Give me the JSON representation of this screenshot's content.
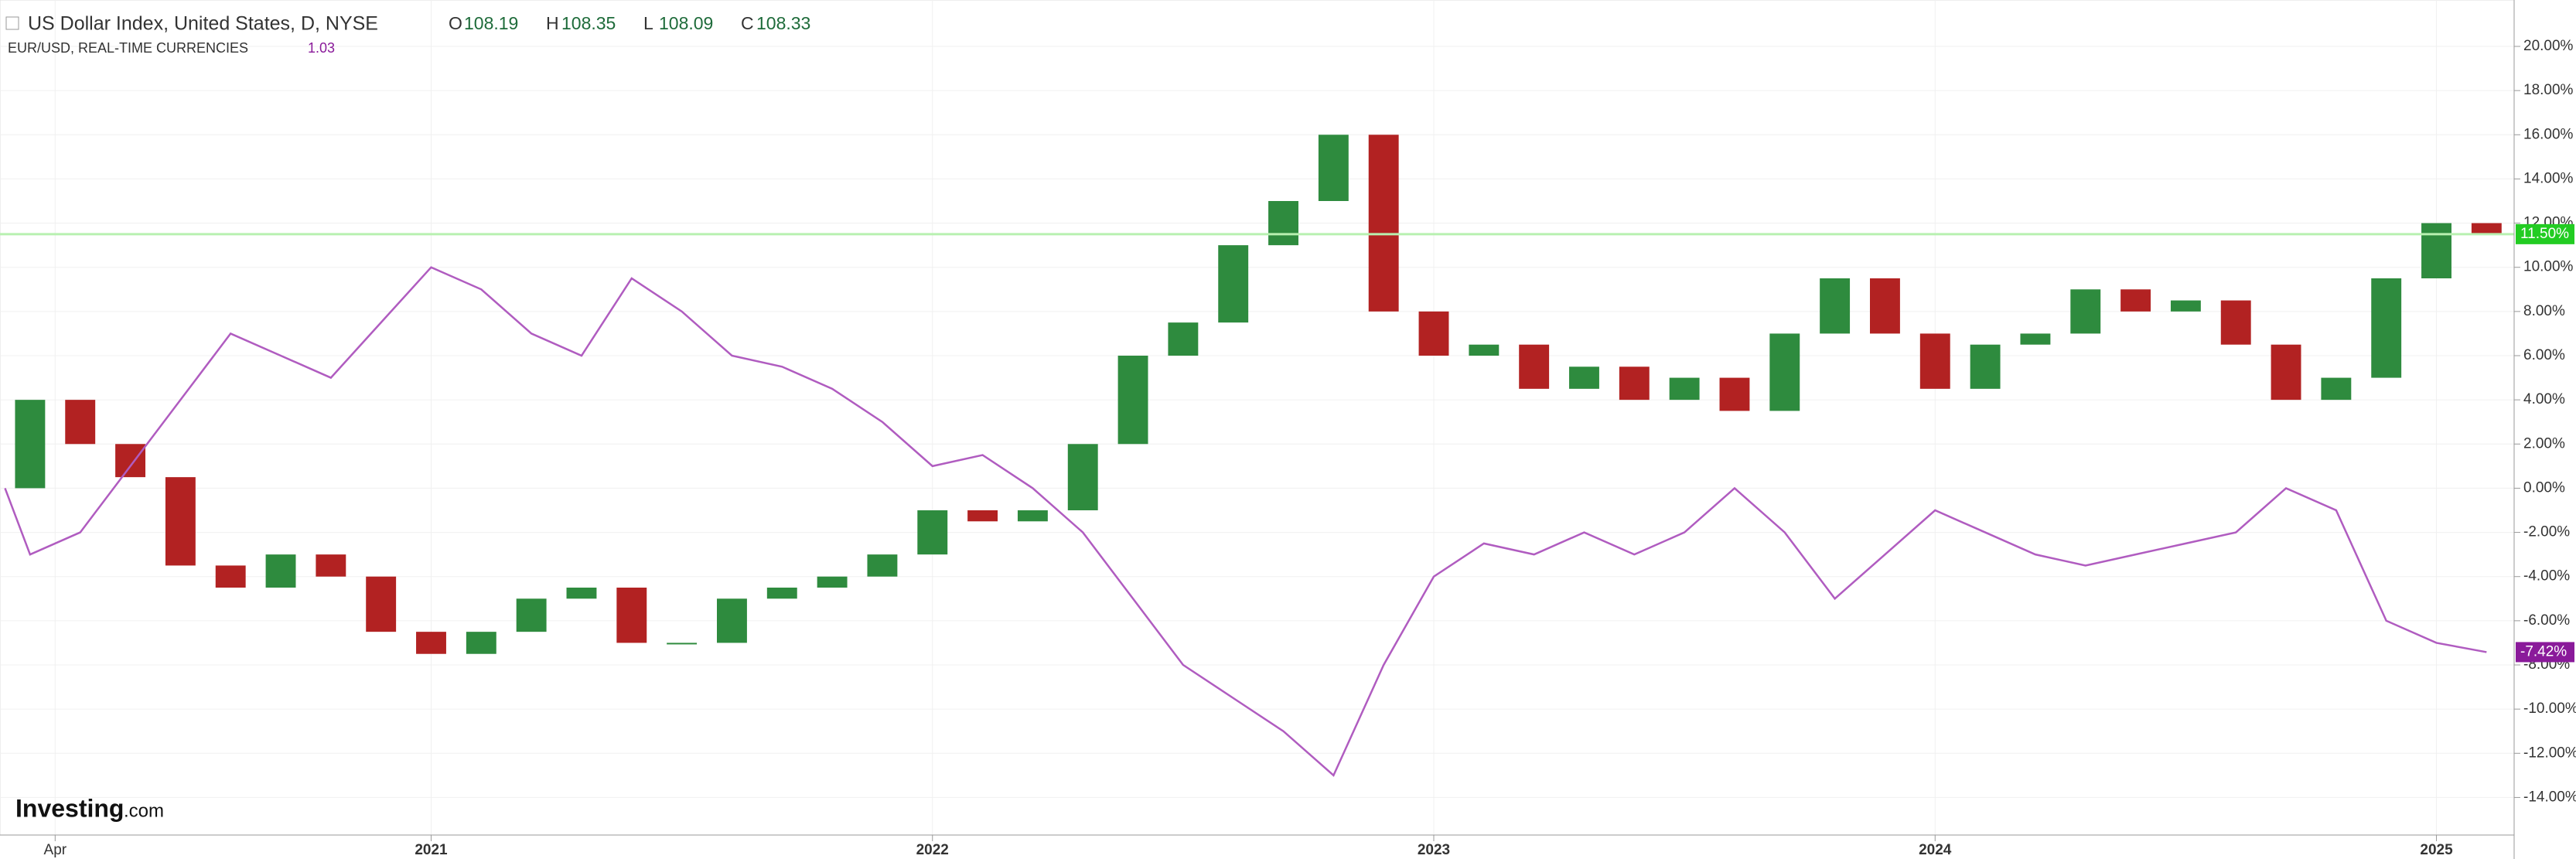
{
  "chart_data": {
    "type": "candlestick",
    "title": "US Dollar Index, United States, D, NYSE",
    "ohlc": [
      {
        "label": "O",
        "value": 108.19
      },
      {
        "label": "H",
        "value": 108.35
      },
      {
        "label": "L",
        "value": 108.09
      },
      {
        "label": "C",
        "value": 108.33
      }
    ],
    "compare_title": "EUR/USD, REAL-TIME CURRENCIES",
    "compare_value": 1.03,
    "logo": {
      "brand": "Investing",
      "suffix": ".com"
    },
    "x": [
      2020.15,
      2020.2,
      2020.3,
      2020.4,
      2020.5,
      2020.6,
      2020.7,
      2020.8,
      2020.9,
      2021.0,
      2021.1,
      2021.2,
      2021.3,
      2021.4,
      2021.5,
      2021.6,
      2021.7,
      2021.8,
      2021.9,
      2022.0,
      2022.1,
      2022.2,
      2022.3,
      2022.4,
      2022.5,
      2022.6,
      2022.7,
      2022.8,
      2022.9,
      2023.0,
      2023.1,
      2023.2,
      2023.3,
      2023.4,
      2023.5,
      2023.6,
      2023.7,
      2023.8,
      2023.9,
      2024.0,
      2024.1,
      2024.2,
      2024.3,
      2024.4,
      2024.5,
      2024.6,
      2024.7,
      2024.8,
      2024.9,
      2025.0,
      2025.1
    ],
    "series": [
      {
        "type": "candlestick",
        "up_color": "#2e8b3e",
        "down_color": "#b22222",
        "last_color": "#22cc22",
        "last_label": "11.50%",
        "values": [
          0,
          4,
          2,
          0.5,
          -3.5,
          -4.5,
          -3,
          -4,
          -6.5,
          -7.5,
          -6.5,
          -5,
          -4.5,
          -7,
          -7,
          -5,
          -4.5,
          -4,
          -3,
          -1,
          -1.5,
          -1,
          2,
          6,
          7.5,
          11,
          13,
          16,
          8,
          6,
          6.5,
          4.5,
          5.5,
          4,
          5,
          3.5,
          7,
          9.5,
          7,
          4.5,
          6.5,
          7,
          9,
          8,
          8.5,
          6.5,
          4,
          5,
          9.5,
          12,
          11.5
        ]
      },
      {
        "type": "line",
        "color": "#b05cc0",
        "last_color": "#8a1a9a",
        "last_label": "-7.42%",
        "values": [
          0,
          -3,
          -2,
          1,
          4,
          7,
          6,
          5,
          7.5,
          10,
          9,
          7,
          6,
          9.5,
          8,
          6,
          5.5,
          4.5,
          3,
          1,
          1.5,
          0,
          -2,
          -5,
          -8,
          -9.5,
          -11,
          -13,
          -8,
          -4,
          -2.5,
          -3,
          -2,
          -3,
          -2,
          0,
          -2,
          -5,
          -3,
          -1,
          -2,
          -3,
          -3.5,
          -3,
          -2.5,
          -2,
          0,
          -1,
          -6,
          -7,
          -7.42
        ]
      }
    ],
    "xlim": [
      2020.14,
      2025.155
    ],
    "xticks": [
      {
        "value": 2020.25,
        "label": "Apr"
      },
      2021,
      2022,
      2023,
      2024,
      2025
    ],
    "ylim": [
      -15.7,
      22.1
    ],
    "yticks": [
      {
        "value": -14,
        "label": "-14.00%"
      },
      {
        "value": -12,
        "label": "-12.00%"
      },
      {
        "value": -10,
        "label": "-10.00%"
      },
      {
        "value": -8,
        "label": "-8.00%"
      },
      {
        "value": -6,
        "label": "-6.00%"
      },
      {
        "value": -4,
        "label": "-4.00%"
      },
      {
        "value": -2,
        "label": "-2.00%"
      },
      {
        "value": 0,
        "label": "0.00%"
      },
      {
        "value": 2,
        "label": "2.00%"
      },
      {
        "value": 4,
        "label": "4.00%"
      },
      {
        "value": 6,
        "label": "6.00%"
      },
      {
        "value": 8,
        "label": "8.00%"
      },
      {
        "value": 10,
        "label": "10.00%"
      },
      {
        "value": 12,
        "label": "12.00%"
      },
      {
        "value": 14,
        "label": "14.00%"
      },
      {
        "value": 16,
        "label": "16.00%"
      },
      {
        "value": 18,
        "label": "18.00%"
      },
      {
        "value": 20,
        "label": "20.00%"
      }
    ],
    "grid": true
  }
}
